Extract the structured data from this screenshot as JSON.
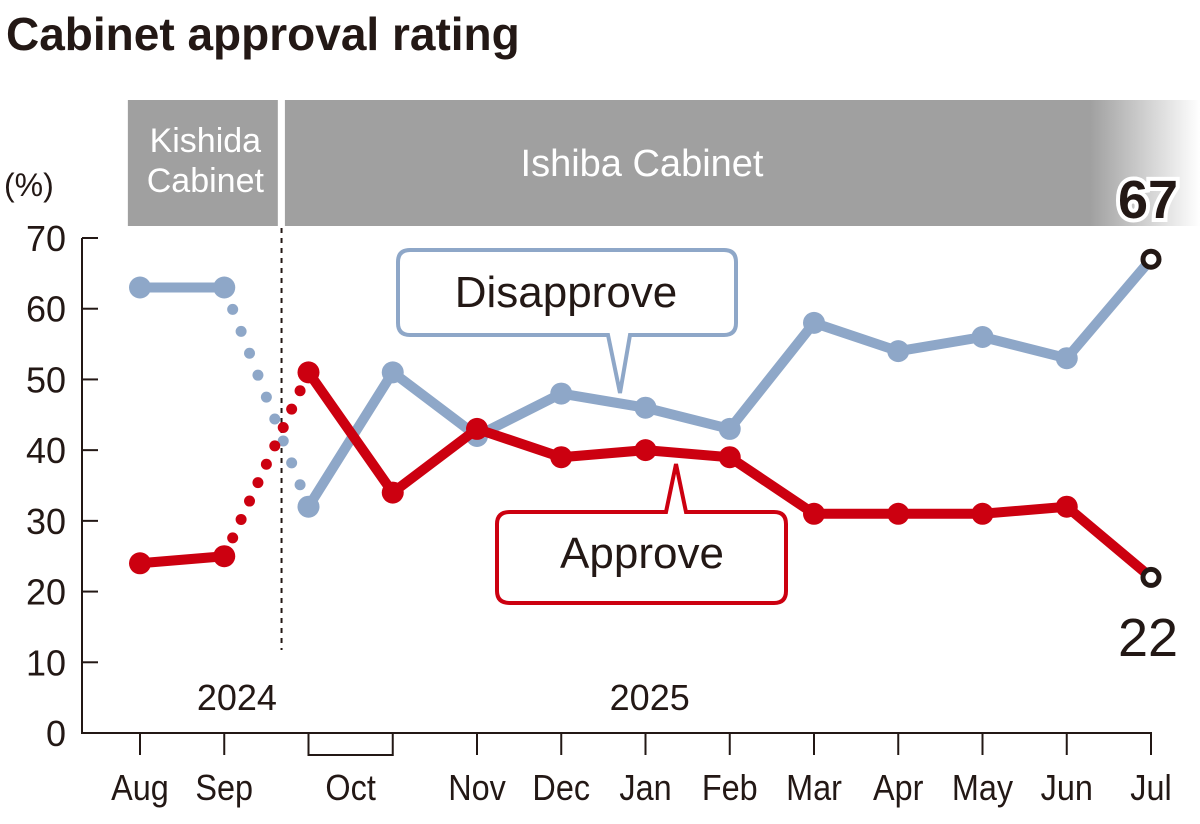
{
  "chart_data": {
    "type": "line",
    "title": "Cabinet approval rating",
    "ylabel": "(%)",
    "ylim": [
      0,
      70
    ],
    "yticks": [
      0,
      10,
      20,
      30,
      40,
      50,
      60,
      70
    ],
    "x": [
      0,
      1,
      2,
      3,
      4,
      5,
      6,
      7,
      8,
      9,
      10,
      11,
      12
    ],
    "month_labels": [
      {
        "label": "Aug",
        "x": 0
      },
      {
        "label": "Sep",
        "x": 1
      },
      {
        "label": "Oct",
        "x": 2.5
      },
      {
        "label": "Nov",
        "x": 4
      },
      {
        "label": "Dec",
        "x": 5
      },
      {
        "label": "Jan",
        "x": 6
      },
      {
        "label": "Feb",
        "x": 7
      },
      {
        "label": "Mar",
        "x": 8
      },
      {
        "label": "Apr",
        "x": 9
      },
      {
        "label": "May",
        "x": 10
      },
      {
        "label": "Jun",
        "x": 11
      },
      {
        "label": "Jul",
        "x": 12
      }
    ],
    "year_labels": [
      {
        "label": "2024",
        "x": 1.15
      },
      {
        "label": "2025",
        "x": 6.05
      }
    ],
    "cabinets": [
      {
        "name": "Kishida Cabinet",
        "line1": "Kishida",
        "line2": "Cabinet",
        "from": -0.15,
        "to": 1.63
      },
      {
        "name": "Ishiba Cabinet",
        "from": 1.72,
        "to": 12.6
      }
    ],
    "cabinet_change_x": 1.68,
    "series": [
      {
        "name": "Disapprove",
        "color": "#8ea7c8",
        "values": [
          63,
          63,
          32,
          51,
          42,
          48,
          46,
          43,
          58,
          54,
          56,
          53,
          67
        ],
        "dotted_segment": [
          1,
          2
        ],
        "end_label": "67"
      },
      {
        "name": "Approve",
        "color": "#cc0010",
        "values": [
          24,
          25,
          51,
          34,
          43,
          39,
          40,
          39,
          31,
          31,
          31,
          32,
          22
        ],
        "dotted_segment": [
          1,
          2
        ],
        "end_label": "22"
      }
    ],
    "grid": false
  }
}
